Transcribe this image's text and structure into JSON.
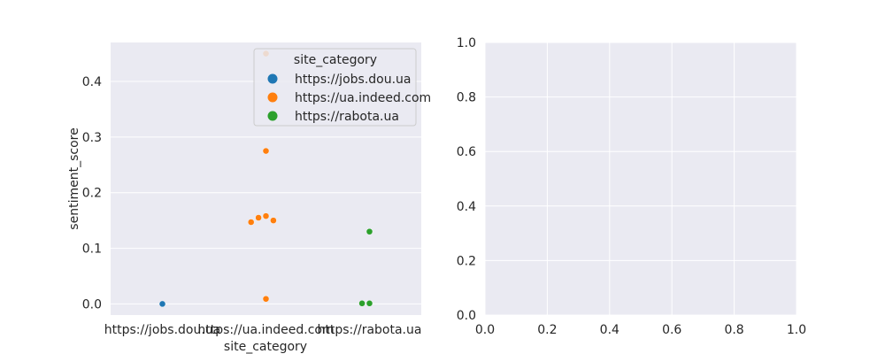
{
  "chart_data": [
    {
      "type": "scatter",
      "subtype": "swarm",
      "xlabel": "site_category",
      "ylabel": "sentiment_score",
      "categories": [
        "https://jobs.dou.ua",
        "https://ua.indeed.com",
        "https://rabota.ua"
      ],
      "ylim": [
        -0.02,
        0.47
      ],
      "yticks": [
        "0.0",
        "0.1",
        "0.2",
        "0.3",
        "0.4"
      ],
      "grid": true,
      "legend": {
        "title": "site_category",
        "placement": "upper right",
        "entries": [
          "https://jobs.dou.ua",
          "https://ua.indeed.com",
          "https://rabota.ua"
        ]
      },
      "series": [
        {
          "name": "https://jobs.dou.ua",
          "color": "#1f77b4",
          "category": "https://jobs.dou.ua",
          "values": [
            0.0
          ]
        },
        {
          "name": "https://ua.indeed.com",
          "color": "#ff7f0e",
          "category": "https://ua.indeed.com",
          "values": [
            0.45,
            0.275,
            0.158,
            0.155,
            0.15,
            0.147,
            0.009
          ]
        },
        {
          "name": "https://rabota.ua",
          "color": "#2ca02c",
          "category": "https://rabota.ua",
          "values": [
            0.13,
            0.001,
            0.001
          ]
        }
      ]
    },
    {
      "type": "scatter",
      "xlim": [
        0.0,
        1.0
      ],
      "ylim": [
        0.0,
        1.0
      ],
      "xticks": [
        "0.0",
        "0.2",
        "0.4",
        "0.6",
        "0.8",
        "1.0"
      ],
      "yticks": [
        "0.0",
        "0.2",
        "0.4",
        "0.6",
        "0.8",
        "1.0"
      ],
      "grid": true,
      "series": []
    }
  ]
}
